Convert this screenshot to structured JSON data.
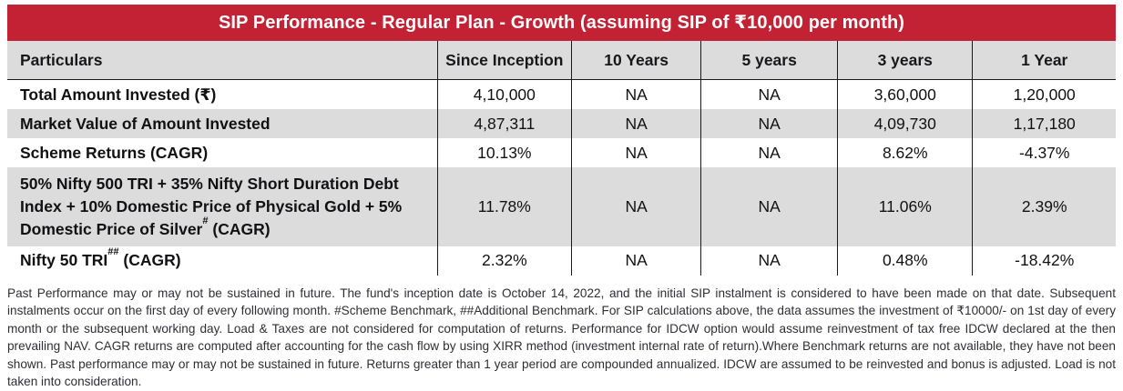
{
  "title": "SIP Performance - Regular Plan - Growth (assuming SIP of ₹10,000 per month)",
  "colors": {
    "accent_red": "#c32134",
    "row_shade": "#dcdcdc",
    "text_dark": "#111114"
  },
  "table": {
    "columns": [
      "Particulars",
      "Since Inception",
      "10 Years",
      "5 years",
      "3 years",
      "1 Year"
    ],
    "rows": [
      {
        "label_pre": "Total Amount Invested (₹)",
        "sup": "",
        "label_post": "",
        "values": [
          "4,10,000",
          "NA",
          "NA",
          "3,60,000",
          "1,20,000"
        ]
      },
      {
        "label_pre": "Market Value of Amount Invested",
        "sup": "",
        "label_post": "",
        "values": [
          "4,87,311",
          "NA",
          "NA",
          "4,09,730",
          "1,17,180"
        ]
      },
      {
        "label_pre": "Scheme Returns (CAGR)",
        "sup": "",
        "label_post": "",
        "values": [
          "10.13%",
          "NA",
          "NA",
          "8.62%",
          "-4.37%"
        ]
      },
      {
        "label_pre": "50% Nifty 500 TRI + 35% Nifty Short Duration Debt Index + 10% Domestic Price of Physical Gold + 5% Domestic Price of Silver",
        "sup": "#",
        "label_post": " (CAGR)",
        "values": [
          "11.78%",
          "NA",
          "NA",
          "11.06%",
          "2.39%"
        ]
      },
      {
        "label_pre": "Nifty 50 TRI",
        "sup": "##",
        "label_post": " (CAGR)",
        "values": [
          "2.32%",
          "NA",
          "NA",
          "0.48%",
          "-18.42%"
        ]
      }
    ]
  },
  "disclaimer": "Past Performance may or may not be sustained in future. The fund's inception date is October 14, 2022, and the initial SIP instalment is considered to have been made on that date. Subsequent instalments occur on the first day of every following month. #Scheme Benchmark, ##Additional Benchmark. For SIP calculations above, the data assumes the investment of ₹10000/- on 1st day of every month or the subsequent working day. Load & Taxes are not considered for computation of returns. Performance for IDCW option would assume reinvestment of tax free IDCW declared at the then prevailing NAV. CAGR returns are computed after accounting for the cash flow by using XIRR method (investment internal rate of return).Where Benchmark returns are not available, they have not been shown. Past performance may or may not be sustained in future. Returns greater than 1 year period are compounded annualized. IDCW are assumed to be reinvested and bonus is adjusted. Load is not taken into consideration."
}
